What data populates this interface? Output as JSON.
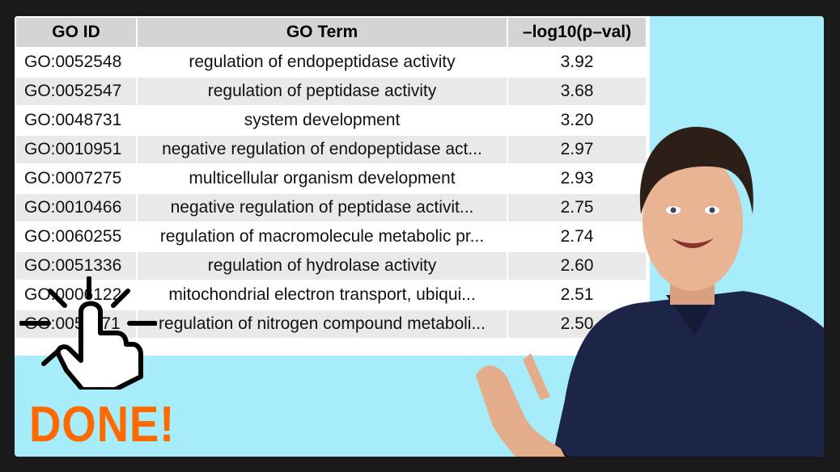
{
  "table": {
    "headers": [
      "GO ID",
      "GO Term",
      "–log10(p–val)"
    ],
    "rows": [
      {
        "id": "GO:0052548",
        "term": "regulation of endopeptidase activity",
        "val": "3.92"
      },
      {
        "id": "GO:0052547",
        "term": "regulation of peptidase activity",
        "val": "3.68"
      },
      {
        "id": "GO:0048731",
        "term": "system development",
        "val": "3.20"
      },
      {
        "id": "GO:0010951",
        "term": "negative regulation of endopeptidase act...",
        "val": "2.97"
      },
      {
        "id": "GO:0007275",
        "term": "multicellular organism development",
        "val": "2.93"
      },
      {
        "id": "GO:0010466",
        "term": "negative regulation of peptidase activit...",
        "val": "2.75"
      },
      {
        "id": "GO:0060255",
        "term": "regulation of macromolecule metabolic pr...",
        "val": "2.74"
      },
      {
        "id": "GO:0051336",
        "term": "regulation of hydrolase activity",
        "val": "2.60"
      },
      {
        "id": "GO:0006122",
        "term": "mitochondrial electron transport, ubiqui...",
        "val": "2.51"
      },
      {
        "id": "GO:0051171",
        "term": "regulation of nitrogen compound metaboli...",
        "val": "2.50"
      }
    ]
  },
  "overlay": {
    "done_text": "DONE!",
    "cursor_icon": "pointing-hand-click-icon",
    "presenter_icon": "presenter-photo"
  },
  "colors": {
    "background": "#a6ecfb",
    "done": "#ff6a00",
    "header_fill": "#d4d4d4",
    "row_alt": "#e9e9e9"
  }
}
